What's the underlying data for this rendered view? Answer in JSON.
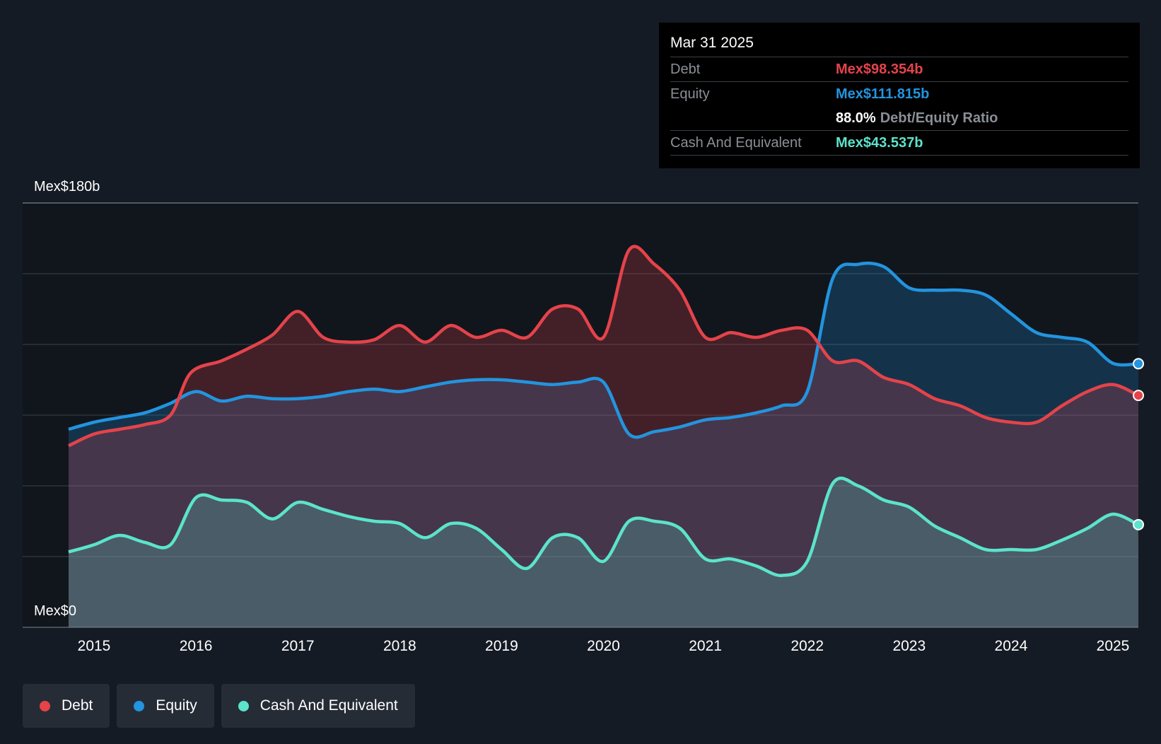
{
  "chart_data": {
    "type": "area",
    "title": "",
    "xlabel": "",
    "ylabel": "",
    "currency_prefix": "Mex$",
    "ylim": [
      0,
      180
    ],
    "y_tick_labels": [
      "Mex$180b",
      "Mex$0"
    ],
    "x_tick_labels": [
      "2015",
      "2016",
      "2017",
      "2018",
      "2019",
      "2020",
      "2021",
      "2022",
      "2023",
      "2024",
      "2025"
    ],
    "grid": true,
    "legend_position": "bottom-left",
    "series": [
      {
        "name": "Debt",
        "color": "#e5434a",
        "x": [
          2014.75,
          2015.0,
          2015.25,
          2015.5,
          2015.75,
          2015.95,
          2016.25,
          2016.5,
          2016.75,
          2017.0,
          2017.25,
          2017.5,
          2017.75,
          2018.0,
          2018.25,
          2018.5,
          2018.75,
          2019.0,
          2019.25,
          2019.5,
          2019.75,
          2020.0,
          2020.25,
          2020.5,
          2020.75,
          2021.0,
          2021.25,
          2021.5,
          2021.75,
          2022.0,
          2022.25,
          2022.5,
          2022.75,
          2023.0,
          2023.25,
          2023.5,
          2023.75,
          2024.0,
          2024.25,
          2024.5,
          2024.75,
          2025.0,
          2025.25
        ],
        "values": [
          77,
          82,
          84,
          86,
          90,
          108,
          113,
          118,
          124,
          134,
          123,
          121,
          122,
          128,
          121,
          128,
          123,
          126,
          123,
          135,
          135,
          123,
          160,
          154,
          143,
          123,
          125,
          123,
          126,
          126,
          113,
          113,
          106,
          103,
          97,
          94,
          89,
          87,
          87,
          94,
          100,
          103,
          98.354
        ]
      },
      {
        "name": "Equity",
        "color": "#2394df",
        "x": [
          2014.75,
          2015.0,
          2015.25,
          2015.5,
          2015.75,
          2016.0,
          2016.25,
          2016.5,
          2016.75,
          2017.0,
          2017.25,
          2017.5,
          2017.75,
          2018.0,
          2018.25,
          2018.5,
          2018.75,
          2019.0,
          2019.25,
          2019.5,
          2019.75,
          2020.0,
          2020.25,
          2020.5,
          2020.75,
          2021.0,
          2021.25,
          2021.5,
          2021.75,
          2022.0,
          2022.25,
          2022.5,
          2022.75,
          2023.0,
          2023.25,
          2023.5,
          2023.75,
          2024.0,
          2024.25,
          2024.5,
          2024.75,
          2025.0,
          2025.25
        ],
        "values": [
          84,
          87,
          89,
          91,
          95,
          100,
          96,
          98,
          97,
          97,
          98,
          100,
          101,
          100,
          102,
          104,
          105,
          105,
          104,
          103,
          104,
          104,
          82,
          83,
          85,
          88,
          89,
          91,
          94,
          100,
          148,
          154,
          153,
          144,
          143,
          143,
          141,
          133,
          125,
          123,
          121,
          112,
          111.815
        ]
      },
      {
        "name": "Cash And Equivalent",
        "color": "#5be4cb",
        "x": [
          2014.75,
          2015.0,
          2015.25,
          2015.5,
          2015.75,
          2016.0,
          2016.25,
          2016.5,
          2016.75,
          2017.0,
          2017.25,
          2017.5,
          2017.75,
          2018.0,
          2018.25,
          2018.5,
          2018.75,
          2019.0,
          2019.25,
          2019.5,
          2019.75,
          2020.0,
          2020.25,
          2020.5,
          2020.75,
          2021.0,
          2021.25,
          2021.5,
          2021.75,
          2022.0,
          2022.25,
          2022.5,
          2022.75,
          2023.0,
          2023.25,
          2023.5,
          2023.75,
          2024.0,
          2024.25,
          2024.5,
          2024.75,
          2025.0,
          2025.25
        ],
        "values": [
          32,
          35,
          39,
          36,
          35,
          55,
          54,
          53,
          46,
          53,
          50,
          47,
          45,
          44,
          38,
          44,
          42,
          33,
          25,
          38,
          38,
          28,
          45,
          45,
          42,
          29,
          29,
          26,
          22,
          28,
          61,
          60,
          54,
          51,
          43,
          38,
          33,
          33,
          33,
          37,
          42,
          48,
          43.537
        ]
      }
    ]
  },
  "tooltip": {
    "date": "Mar 31 2025",
    "debt_label": "Debt",
    "debt_value": "Mex$98.354b",
    "equity_label": "Equity",
    "equity_value": "Mex$111.815b",
    "ratio_value": "88.0%",
    "ratio_label": "Debt/Equity Ratio",
    "cash_label": "Cash And Equivalent",
    "cash_value": "Mex$43.537b"
  },
  "legend": {
    "items": [
      {
        "label": "Debt",
        "color": "#e5434a"
      },
      {
        "label": "Equity",
        "color": "#2394df"
      },
      {
        "label": "Cash And Equivalent",
        "color": "#5be4cb"
      }
    ]
  }
}
